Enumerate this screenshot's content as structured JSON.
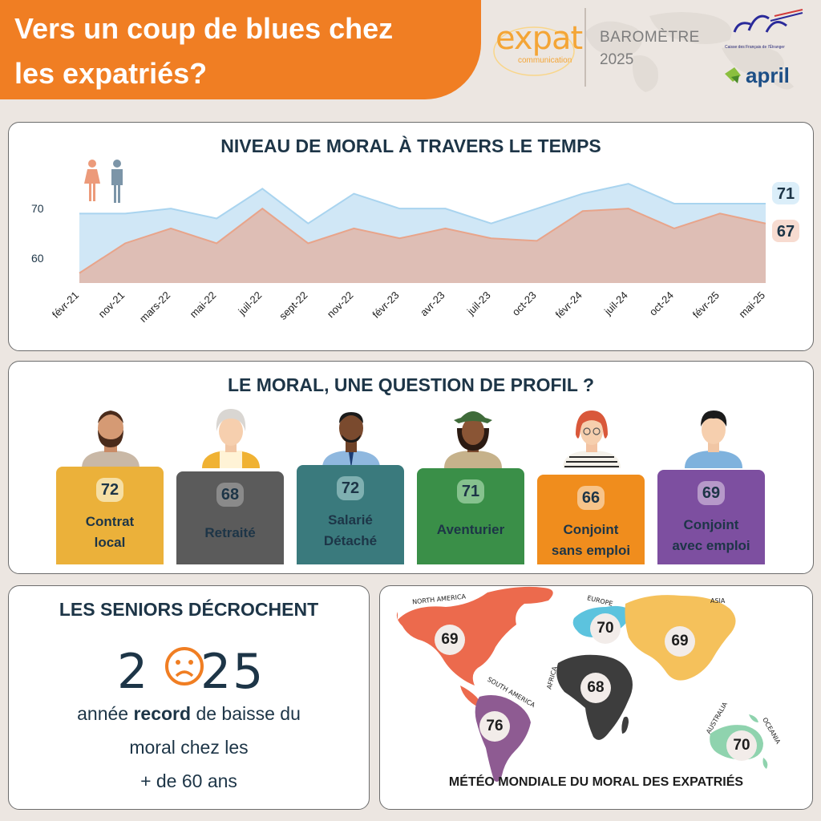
{
  "header": {
    "title_line1": "Vers un coup de blues chez",
    "title_line2": "les expatriés?",
    "expat_logo_word": "expat",
    "expat_logo_sub": "communication",
    "barometre_label": "BAROMÈTRE",
    "barometre_year": "2025",
    "cfe_sub": "Caisse des Français de l'Étranger",
    "april_word": "april"
  },
  "chart_data": {
    "type": "area",
    "title": "NIVEAU DE MORAL À TRAVERS LE TEMPS",
    "categories": [
      "févr-21",
      "nov-21",
      "mars-22",
      "mai-22",
      "juil-22",
      "sept-22",
      "nov-22",
      "févr-23",
      "avr-23",
      "juil-23",
      "oct-23",
      "févr-24",
      "juil-24",
      "oct-24",
      "févr-25",
      "mai-25"
    ],
    "series": [
      {
        "values": [
          69,
          69,
          70,
          68,
          74,
          67,
          73,
          70,
          70,
          67,
          70,
          73,
          75,
          71,
          71,
          71
        ],
        "color": "#a9d4ef"
      },
      {
        "values": [
          57,
          63,
          66,
          63,
          70,
          63,
          66,
          64,
          66,
          64,
          63.5,
          69.5,
          70,
          66,
          69,
          67
        ],
        "color": "#e8a48a"
      }
    ],
    "yticks": [
      60,
      70
    ],
    "ylim": [
      55,
      76
    ],
    "end_labels": [
      "71",
      "67"
    ],
    "legend_icons": [
      "woman-icon",
      "man-icon"
    ]
  },
  "profiles": {
    "title": "LE MORAL, UNE QUESTION DE PROFIL ?",
    "cards": [
      {
        "score": "72",
        "line1": "Contrat",
        "line2": "local",
        "color": "#ebb13a"
      },
      {
        "score": "68",
        "line1": "Retraité",
        "line2": "",
        "color": "#5b5b5b"
      },
      {
        "score": "72",
        "line1": "Salarié",
        "line2": "Détaché",
        "color": "#3a7a7d"
      },
      {
        "score": "71",
        "line1": "Aventurier",
        "line2": "",
        "color": "#3a8f48"
      },
      {
        "score": "66",
        "line1": "Conjoint",
        "line2": "sans emploi",
        "color": "#f08d1d"
      },
      {
        "score": "69",
        "line1": "Conjoint",
        "line2": "avec emploi",
        "color": "#7d4fa0"
      }
    ]
  },
  "seniors": {
    "title": "LES SENIORS DÉCROCHENT",
    "year_digit1": "2",
    "year_rest": "25",
    "text_line1_pre": "année ",
    "text_line1_bold": "record",
    "text_line1_post": " de baisse du",
    "text_line2": "moral chez les",
    "text_line3": "+ de 60 ans"
  },
  "world_map": {
    "title": "MÉTÉO MONDIALE DU MORAL DES EXPATRIÉS",
    "regions": [
      {
        "name": "NORTH AMERICA",
        "score": "69",
        "color": "#ec6a4d"
      },
      {
        "name": "EUROPE",
        "score": "70",
        "color": "#5cc3de"
      },
      {
        "name": "ASIA",
        "score": "69",
        "color": "#f5c15b"
      },
      {
        "name": "AFRICA",
        "score": "68",
        "color": "#3d3d3d"
      },
      {
        "name": "SOUTH AMERICA",
        "score": "76",
        "color": "#8e5b92"
      },
      {
        "name": "AUSTRALIA",
        "score": "70",
        "color": "#8fd3ae"
      },
      {
        "name": "OCEANIA",
        "score": "",
        "color": "#8fd3ae"
      }
    ]
  }
}
